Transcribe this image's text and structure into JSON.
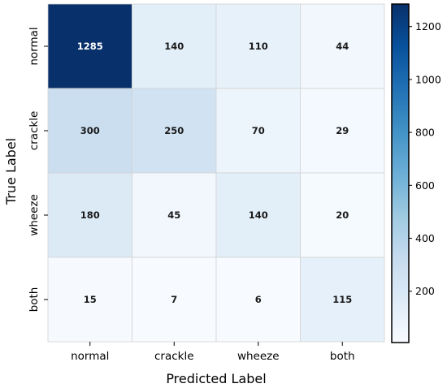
{
  "chart_data": {
    "type": "heatmap",
    "xlabel": "Predicted Label",
    "ylabel": "True Label",
    "x_categories": [
      "normal",
      "crackle",
      "wheeze",
      "both"
    ],
    "y_categories": [
      "normal",
      "crackle",
      "wheeze",
      "both"
    ],
    "matrix": [
      [
        1285,
        140,
        110,
        44
      ],
      [
        300,
        250,
        70,
        29
      ],
      [
        180,
        45,
        140,
        20
      ],
      [
        15,
        7,
        6,
        115
      ]
    ],
    "colorbar": {
      "colormap": "Blues",
      "vmin": 6,
      "vmax": 1285,
      "ticks": [
        200,
        400,
        600,
        800,
        1000,
        1200
      ]
    }
  }
}
